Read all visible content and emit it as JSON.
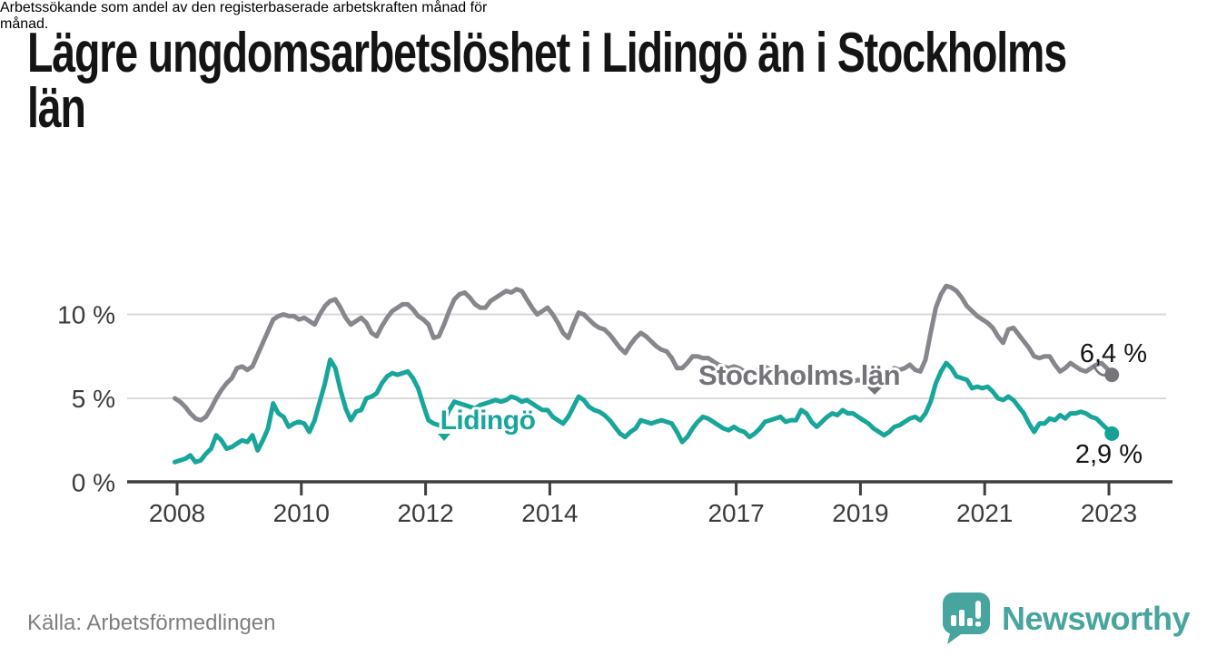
{
  "header": {
    "title_lines": [
      "Lägre ungdomsarbetslöshet i Lidingö än i Stockholms",
      "län"
    ],
    "subtitle_lines": [
      "Arbetssökande som andel av den registerbaserade arbetskraften månad för",
      "månad."
    ]
  },
  "chart_data": {
    "type": "line",
    "title": "Lägre ungdomsarbetslöshet i Lidingö än i Stockholms län",
    "xlabel": "",
    "ylabel": "",
    "frequency": "monthly",
    "x_start": "2008-01",
    "x_end": "2023-02",
    "x_ticks": [
      2008,
      2010,
      2012,
      2014,
      2017,
      2019,
      2021,
      2023
    ],
    "y_ticks": [
      {
        "value": 0,
        "label": "0 %"
      },
      {
        "value": 5,
        "label": "5 %"
      },
      {
        "value": 10,
        "label": "10 %"
      }
    ],
    "ylim": [
      0,
      12.3
    ],
    "grid": "horizontal",
    "legend_position": "inline-labels",
    "series": [
      {
        "name": "Stockholms län",
        "color": "#86868c",
        "dot_color": "#75757b",
        "end_label": "6,4 %",
        "end_value": 6.4,
        "values": [
          5.0,
          4.8,
          4.5,
          4.1,
          3.8,
          3.7,
          3.9,
          4.4,
          5.0,
          5.5,
          5.9,
          6.2,
          6.8,
          6.9,
          6.7,
          6.9,
          7.6,
          8.3,
          9.0,
          9.7,
          9.9,
          10.0,
          9.9,
          9.9,
          9.7,
          9.8,
          9.6,
          9.4,
          10.0,
          10.5,
          10.8,
          10.9,
          10.4,
          9.8,
          9.4,
          9.6,
          9.8,
          9.5,
          8.9,
          8.7,
          9.3,
          9.8,
          10.2,
          10.4,
          10.6,
          10.6,
          10.3,
          9.9,
          9.7,
          9.4,
          8.6,
          8.7,
          9.4,
          10.2,
          10.9,
          11.2,
          11.3,
          11.0,
          10.6,
          10.4,
          10.4,
          10.8,
          11.0,
          11.2,
          11.4,
          11.3,
          11.5,
          11.4,
          10.9,
          10.4,
          10.0,
          10.2,
          10.4,
          10.0,
          9.5,
          8.9,
          8.6,
          9.4,
          10.1,
          10.0,
          9.7,
          9.4,
          9.2,
          9.1,
          8.8,
          8.4,
          8.0,
          7.7,
          8.2,
          8.6,
          8.9,
          8.7,
          8.4,
          8.1,
          7.9,
          7.8,
          7.4,
          6.8,
          6.8,
          7.1,
          7.5,
          7.5,
          7.4,
          7.4,
          7.2,
          7.0,
          6.9,
          6.8,
          6.9,
          6.8,
          6.6,
          6.4,
          6.5,
          6.8,
          6.9,
          6.7,
          6.5,
          6.3,
          6.2,
          6.1,
          6.1,
          6.2,
          6.0,
          5.9,
          5.8,
          6.0,
          6.2,
          6.1,
          5.9,
          5.8,
          5.9,
          6.0,
          6.1,
          6.0,
          5.9,
          5.8,
          6.0,
          6.3,
          6.5,
          6.8,
          6.7,
          6.8,
          7.0,
          6.7,
          6.6,
          7.3,
          8.9,
          10.4,
          11.2,
          11.7,
          11.6,
          11.4,
          11.0,
          10.5,
          10.2,
          9.9,
          9.7,
          9.5,
          9.2,
          8.7,
          8.3,
          9.1,
          9.2,
          8.8,
          8.4,
          8.0,
          7.5,
          7.4,
          7.5,
          7.5,
          7.0,
          6.6,
          6.8,
          7.1,
          6.9,
          6.7,
          6.6,
          6.8,
          7.0,
          7.1,
          6.8,
          6.4
        ]
      },
      {
        "name": "Lidingö",
        "color": "#18a69b",
        "dot_color": "#16a096",
        "end_label": "2,9 %",
        "end_value": 2.9,
        "values": [
          1.2,
          1.3,
          1.4,
          1.6,
          1.2,
          1.3,
          1.7,
          2.0,
          2.8,
          2.5,
          2.0,
          2.1,
          2.3,
          2.5,
          2.4,
          2.8,
          1.9,
          2.5,
          3.2,
          4.7,
          4.1,
          3.9,
          3.3,
          3.5,
          3.6,
          3.5,
          3.0,
          3.7,
          4.8,
          5.9,
          7.3,
          6.8,
          5.5,
          4.4,
          3.7,
          4.2,
          4.3,
          5.0,
          5.1,
          5.3,
          5.9,
          6.3,
          6.5,
          6.4,
          6.5,
          6.6,
          6.2,
          5.6,
          4.6,
          3.7,
          3.5,
          3.4,
          3.6,
          4.3,
          4.8,
          4.7,
          4.6,
          4.5,
          4.4,
          4.6,
          4.7,
          4.8,
          4.9,
          4.8,
          4.9,
          5.1,
          5.0,
          4.8,
          4.9,
          4.7,
          4.5,
          4.3,
          4.3,
          3.9,
          3.7,
          3.5,
          3.9,
          4.5,
          5.1,
          4.9,
          4.5,
          4.3,
          4.2,
          4.0,
          3.7,
          3.3,
          2.9,
          2.7,
          3.0,
          3.2,
          3.7,
          3.6,
          3.5,
          3.6,
          3.7,
          3.6,
          3.5,
          3.0,
          2.4,
          2.7,
          3.2,
          3.6,
          3.9,
          3.8,
          3.6,
          3.4,
          3.2,
          3.1,
          3.3,
          3.1,
          3.0,
          2.7,
          2.9,
          3.2,
          3.6,
          3.7,
          3.8,
          3.9,
          3.6,
          3.7,
          3.7,
          4.3,
          4.1,
          3.6,
          3.3,
          3.6,
          3.9,
          4.1,
          4.0,
          4.3,
          4.1,
          4.1,
          3.9,
          3.7,
          3.5,
          3.2,
          3.0,
          2.8,
          3.0,
          3.3,
          3.4,
          3.6,
          3.8,
          3.9,
          3.7,
          4.1,
          4.8,
          5.9,
          6.6,
          7.1,
          6.8,
          6.3,
          6.2,
          6.1,
          5.6,
          5.7,
          5.6,
          5.7,
          5.4,
          5.0,
          4.9,
          5.1,
          4.9,
          4.5,
          4.1,
          3.5,
          3.0,
          3.5,
          3.5,
          3.8,
          3.7,
          4.0,
          3.8,
          4.1,
          4.1,
          4.2,
          4.1,
          3.9,
          3.8,
          3.5,
          3.2,
          2.9
        ]
      }
    ]
  },
  "footer": {
    "source": "Källa: Arbetsförmedlingen",
    "logo_text": "Newsworthy"
  },
  "colors": {
    "lidingo_teal": "#18a69b",
    "stockholm_gray": "#86868c",
    "logo_teal": "#48a49e",
    "grid": "#d9d9d9",
    "axis": "#3e3e3e",
    "text_dark": "#141414"
  }
}
